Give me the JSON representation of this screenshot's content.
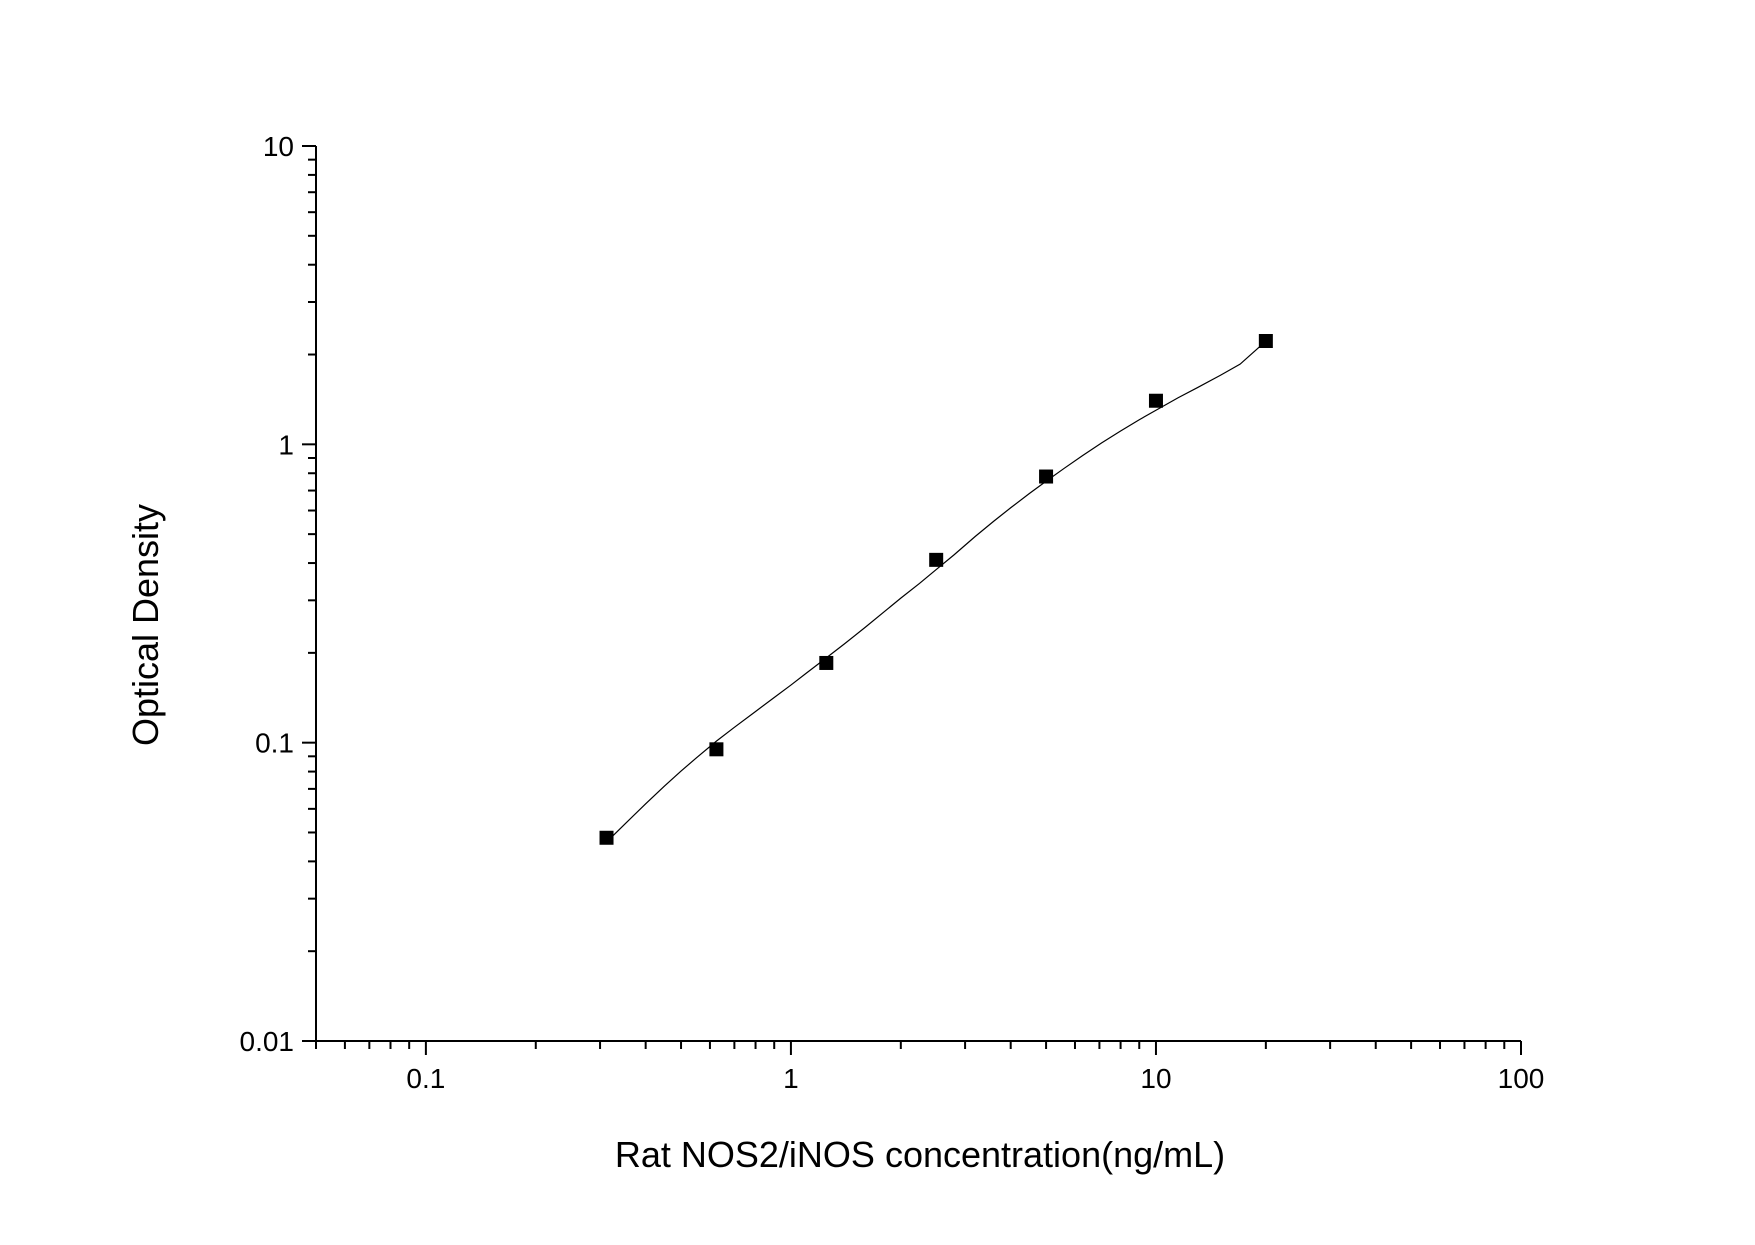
{
  "chart_data": {
    "type": "scatter",
    "title": "",
    "xlabel": "Rat NOS2/iNOS concentration(ng/mL)",
    "ylabel": "Optical Density",
    "x_scale": "log",
    "y_scale": "log",
    "xlim": [
      0.05,
      100
    ],
    "ylim": [
      0.01,
      10
    ],
    "x_ticks": [
      0.1,
      1,
      10,
      100
    ],
    "x_tick_labels": [
      "0.1",
      "1",
      "10",
      "100"
    ],
    "y_ticks": [
      0.01,
      0.1,
      1,
      10
    ],
    "y_tick_labels": [
      "0.01",
      "0.1",
      "1",
      "10"
    ],
    "grid": false,
    "legend": "none",
    "marker": "square",
    "color": "#000000",
    "series": [
      {
        "x": [
          0.3125,
          0.625,
          1.25,
          2.5,
          5,
          10,
          20
        ],
        "y": [
          0.048,
          0.095,
          0.185,
          0.41,
          0.78,
          1.4,
          2.22
        ]
      }
    ],
    "fit_curve": {
      "type": "line",
      "x": [
        0.31,
        0.35,
        0.4,
        0.45,
        0.5,
        0.55,
        0.625,
        0.7,
        0.8,
        0.9,
        1.0,
        1.1,
        1.25,
        1.4,
        1.6,
        1.8,
        2.0,
        2.25,
        2.5,
        2.8,
        3.2,
        3.6,
        4.0,
        4.5,
        5.0,
        5.6,
        6.3,
        7.1,
        8.0,
        9.0,
        10.0,
        11.5,
        13.0,
        15.0,
        17.0,
        20.0
      ],
      "y": [
        0.046,
        0.0532,
        0.0624,
        0.0715,
        0.0803,
        0.0888,
        0.1012,
        0.1126,
        0.1272,
        0.1417,
        0.156,
        0.1707,
        0.1924,
        0.2141,
        0.2439,
        0.2745,
        0.3051,
        0.3417,
        0.3803,
        0.4265,
        0.4915,
        0.5534,
        0.6129,
        0.6841,
        0.7523,
        0.8303,
        0.9175,
        1.011,
        1.108,
        1.209,
        1.301,
        1.433,
        1.55,
        1.703,
        1.857,
        2.217
      ]
    }
  }
}
